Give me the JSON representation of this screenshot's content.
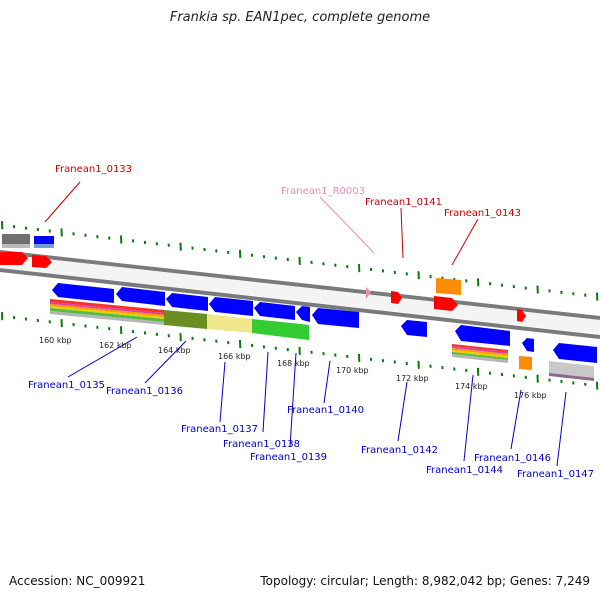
{
  "title": "Frankia sp. EAN1pec, complete genome",
  "footer": {
    "accession": "Accession: NC_009921",
    "topology": "Topology: circular; Length: 8,982,042 bp; Genes: 7,249"
  },
  "colors": {
    "label_red": "#cc0000",
    "label_blue": "#0000cc",
    "label_pink": "#f08ab0",
    "gene_blue": "#0000ff",
    "gene_red": "#ff0000",
    "gene_orange": "#ff8c00",
    "gene_green": "#33cc33",
    "gene_olive": "#6b8e23",
    "gene_khaki": "#f0e68c",
    "gene_gray": "#707070",
    "tick_green": "#0a7a0a"
  },
  "scale_labels": [
    "160 kbp",
    "162 kbp",
    "164 kbp",
    "166 kbp",
    "168 kbp",
    "170 kbp",
    "172 kbp",
    "174 kbp",
    "176 kbp"
  ],
  "gene_labels": {
    "top": [
      "Franean1_0133",
      "Franean1_R0003",
      "Franean1_0141",
      "Franean1_0143"
    ],
    "bottom": [
      "Franean1_0135",
      "Franean1_0136",
      "Franean1_0137",
      "Franean1_0138",
      "Franean1_0139",
      "Franean1_0140",
      "Franean1_0142",
      "Franean1_0144",
      "Franean1_0146",
      "Franean1_0147"
    ]
  }
}
